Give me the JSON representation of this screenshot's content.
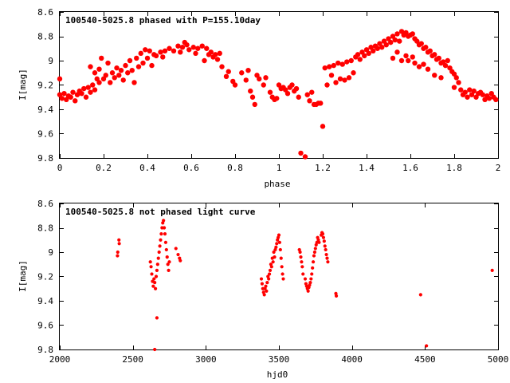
{
  "chart_data": [
    {
      "type": "scatter",
      "title": "100540-5025.8 phased with P=155.10day",
      "xlabel": "phase",
      "ylabel": "I[mag]",
      "xlim": [
        0,
        2
      ],
      "ylim": [
        8.6,
        9.8
      ],
      "y_inverted": true,
      "xticks": [
        "0",
        "0.2",
        "0.4",
        "0.6",
        "0.8",
        "1",
        "1.2",
        "1.4",
        "1.6",
        "1.8",
        "2"
      ],
      "yticks": [
        "8.6",
        "8.8",
        "9",
        "9.2",
        "9.4",
        "9.6",
        "9.8"
      ],
      "color": "#ff0000",
      "marker": "filled-circle-large",
      "points": [
        [
          0.0,
          9.15
        ],
        [
          0.0,
          9.28
        ],
        [
          0.01,
          9.31
        ],
        [
          0.02,
          9.27
        ],
        [
          0.03,
          9.32
        ],
        [
          0.04,
          9.29
        ],
        [
          0.05,
          9.3
        ],
        [
          0.06,
          9.26
        ],
        [
          0.07,
          9.33
        ],
        [
          0.08,
          9.28
        ],
        [
          0.09,
          9.25
        ],
        [
          0.1,
          9.27
        ],
        [
          0.11,
          9.23
        ],
        [
          0.12,
          9.3
        ],
        [
          0.13,
          9.22
        ],
        [
          0.14,
          9.26
        ],
        [
          0.15,
          9.2
        ],
        [
          0.16,
          9.24
        ],
        [
          0.17,
          9.15
        ],
        [
          0.18,
          9.18
        ],
        [
          0.19,
          8.98
        ],
        [
          0.2,
          9.15
        ],
        [
          0.21,
          9.12
        ],
        [
          0.22,
          9.02
        ],
        [
          0.23,
          9.18
        ],
        [
          0.24,
          9.1
        ],
        [
          0.25,
          9.14
        ],
        [
          0.26,
          9.06
        ],
        [
          0.27,
          9.12
        ],
        [
          0.28,
          9.08
        ],
        [
          0.29,
          9.16
        ],
        [
          0.3,
          9.04
        ],
        [
          0.31,
          9.1
        ],
        [
          0.32,
          9.0
        ],
        [
          0.33,
          9.08
        ],
        [
          0.34,
          9.18
        ],
        [
          0.35,
          8.98
        ],
        [
          0.36,
          9.05
        ],
        [
          0.37,
          8.94
        ],
        [
          0.38,
          9.02
        ],
        [
          0.39,
          8.91
        ],
        [
          0.4,
          8.98
        ],
        [
          0.41,
          8.92
        ],
        [
          0.42,
          9.04
        ],
        [
          0.43,
          8.95
        ],
        [
          0.44,
          8.96
        ],
        [
          0.46,
          8.93
        ],
        [
          0.48,
          8.92
        ],
        [
          0.5,
          8.9
        ],
        [
          0.52,
          8.92
        ],
        [
          0.54,
          8.88
        ],
        [
          0.56,
          8.89
        ],
        [
          0.57,
          8.85
        ],
        [
          0.58,
          8.87
        ],
        [
          0.59,
          8.91
        ],
        [
          0.61,
          8.89
        ],
        [
          0.63,
          8.9
        ],
        [
          0.65,
          8.88
        ],
        [
          0.67,
          8.9
        ],
        [
          0.68,
          8.95
        ],
        [
          0.69,
          8.93
        ],
        [
          0.7,
          8.97
        ],
        [
          0.71,
          8.95
        ],
        [
          0.72,
          8.99
        ],
        [
          0.73,
          8.94
        ],
        [
          0.74,
          9.05
        ],
        [
          0.76,
          9.13
        ],
        [
          0.77,
          9.09
        ],
        [
          0.79,
          9.17
        ],
        [
          0.8,
          9.2
        ],
        [
          0.83,
          9.1
        ],
        [
          0.85,
          9.16
        ],
        [
          0.86,
          9.08
        ],
        [
          0.87,
          9.25
        ],
        [
          0.88,
          9.3
        ],
        [
          0.89,
          9.36
        ],
        [
          0.9,
          9.12
        ],
        [
          0.91,
          9.15
        ],
        [
          0.93,
          9.2
        ],
        [
          0.94,
          9.14
        ],
        [
          0.96,
          9.26
        ],
        [
          0.97,
          9.3
        ],
        [
          0.98,
          9.32
        ],
        [
          0.99,
          9.31
        ],
        [
          1.0,
          9.2
        ],
        [
          1.01,
          9.23
        ],
        [
          1.02,
          9.22
        ],
        [
          1.03,
          9.24
        ],
        [
          1.04,
          9.27
        ],
        [
          1.05,
          9.22
        ],
        [
          1.06,
          9.2
        ],
        [
          1.07,
          9.25
        ],
        [
          1.08,
          9.23
        ],
        [
          1.09,
          9.3
        ],
        [
          1.1,
          9.76
        ],
        [
          1.12,
          9.79
        ],
        [
          1.13,
          9.28
        ],
        [
          1.14,
          9.33
        ],
        [
          1.15,
          9.26
        ],
        [
          1.16,
          9.36
        ],
        [
          1.17,
          9.36
        ],
        [
          1.18,
          9.35
        ],
        [
          1.19,
          9.35
        ],
        [
          1.2,
          9.54
        ],
        [
          1.21,
          9.06
        ],
        [
          1.22,
          9.2
        ],
        [
          1.23,
          9.05
        ],
        [
          1.24,
          9.12
        ],
        [
          1.25,
          9.04
        ],
        [
          1.26,
          9.18
        ],
        [
          1.27,
          9.02
        ],
        [
          1.28,
          9.15
        ],
        [
          1.29,
          9.03
        ],
        [
          1.3,
          9.16
        ],
        [
          1.31,
          9.01
        ],
        [
          1.32,
          9.14
        ],
        [
          1.33,
          9.0
        ],
        [
          1.34,
          9.1
        ],
        [
          1.35,
          8.97
        ],
        [
          1.36,
          8.95
        ],
        [
          1.37,
          8.99
        ],
        [
          1.38,
          8.93
        ],
        [
          1.39,
          8.96
        ],
        [
          1.4,
          8.91
        ],
        [
          1.41,
          8.94
        ],
        [
          1.42,
          8.89
        ],
        [
          1.43,
          8.92
        ],
        [
          1.44,
          8.88
        ],
        [
          1.45,
          8.9
        ],
        [
          1.46,
          8.86
        ],
        [
          1.47,
          8.89
        ],
        [
          1.48,
          8.84
        ],
        [
          1.49,
          8.87
        ],
        [
          1.5,
          8.82
        ],
        [
          1.51,
          8.85
        ],
        [
          1.52,
          8.8
        ],
        [
          1.53,
          8.83
        ],
        [
          1.54,
          8.78
        ],
        [
          1.55,
          8.84
        ],
        [
          1.56,
          8.76
        ],
        [
          1.57,
          8.79
        ],
        [
          1.58,
          8.77
        ],
        [
          1.59,
          8.8
        ],
        [
          1.6,
          8.79
        ],
        [
          1.61,
          8.78
        ],
        [
          1.62,
          8.82
        ],
        [
          1.63,
          8.84
        ],
        [
          1.64,
          8.87
        ],
        [
          1.65,
          8.86
        ],
        [
          1.66,
          8.9
        ],
        [
          1.67,
          8.89
        ],
        [
          1.68,
          8.93
        ],
        [
          1.69,
          8.92
        ],
        [
          1.7,
          8.96
        ],
        [
          1.71,
          8.95
        ],
        [
          1.72,
          8.99
        ],
        [
          1.73,
          8.98
        ],
        [
          1.74,
          9.02
        ],
        [
          1.75,
          9.01
        ],
        [
          1.76,
          9.04
        ],
        [
          1.77,
          9.0
        ],
        [
          1.78,
          9.06
        ],
        [
          1.79,
          9.09
        ],
        [
          1.8,
          9.11
        ],
        [
          1.81,
          9.14
        ],
        [
          1.82,
          9.18
        ],
        [
          1.83,
          9.24
        ],
        [
          1.84,
          9.28
        ],
        [
          1.85,
          9.26
        ],
        [
          1.86,
          9.3
        ],
        [
          1.87,
          9.24
        ],
        [
          1.88,
          9.28
        ],
        [
          1.89,
          9.25
        ],
        [
          1.9,
          9.3
        ],
        [
          1.91,
          9.27
        ],
        [
          1.92,
          9.26
        ],
        [
          1.93,
          9.28
        ],
        [
          1.94,
          9.32
        ],
        [
          1.95,
          9.29
        ],
        [
          1.96,
          9.31
        ],
        [
          1.97,
          9.27
        ],
        [
          1.98,
          9.3
        ],
        [
          1.99,
          9.32
        ],
        [
          1.58,
          8.96
        ],
        [
          1.59,
          9.0
        ],
        [
          1.61,
          8.97
        ],
        [
          1.62,
          9.02
        ],
        [
          1.64,
          9.05
        ],
        [
          1.52,
          8.98
        ],
        [
          1.54,
          8.93
        ],
        [
          1.56,
          9.0
        ],
        [
          1.66,
          9.03
        ],
        [
          1.68,
          9.07
        ],
        [
          1.71,
          9.12
        ],
        [
          1.74,
          9.14
        ],
        [
          1.8,
          9.22
        ],
        [
          0.14,
          9.05
        ],
        [
          0.16,
          9.1
        ],
        [
          0.18,
          9.07
        ],
        [
          0.47,
          8.97
        ],
        [
          0.55,
          8.93
        ],
        [
          0.62,
          8.94
        ],
        [
          0.66,
          9.0
        ]
      ]
    },
    {
      "type": "scatter",
      "title": "100540-5025.8 not phased light curve",
      "xlabel": "hjd0",
      "ylabel": "I[mag]",
      "xlim": [
        2000,
        5000
      ],
      "ylim": [
        8.6,
        9.8
      ],
      "y_inverted": true,
      "xticks": [
        "2000",
        "2500",
        "3000",
        "3500",
        "4000",
        "4500",
        "5000"
      ],
      "yticks": [
        "8.6",
        "8.8",
        "9",
        "9.2",
        "9.4",
        "9.6",
        "9.8"
      ],
      "color": "#ff0000",
      "marker": "filled-circle-small",
      "points": [
        [
          2395,
          9.03
        ],
        [
          2397,
          9.0
        ],
        [
          2405,
          8.9
        ],
        [
          2407,
          8.93
        ],
        [
          2620,
          9.08
        ],
        [
          2625,
          9.12
        ],
        [
          2630,
          9.18
        ],
        [
          2635,
          9.24
        ],
        [
          2640,
          9.28
        ],
        [
          2645,
          9.22
        ],
        [
          2650,
          9.25
        ],
        [
          2655,
          9.3
        ],
        [
          2660,
          9.2
        ],
        [
          2665,
          9.15
        ],
        [
          2670,
          9.1
        ],
        [
          2675,
          9.05
        ],
        [
          2680,
          9.0
        ],
        [
          2685,
          8.95
        ],
        [
          2690,
          8.9
        ],
        [
          2695,
          8.85
        ],
        [
          2700,
          8.8
        ],
        [
          2705,
          8.76
        ],
        [
          2710,
          8.74
        ],
        [
          2715,
          8.8
        ],
        [
          2720,
          8.85
        ],
        [
          2725,
          8.92
        ],
        [
          2730,
          8.98
        ],
        [
          2735,
          9.04
        ],
        [
          2740,
          9.1
        ],
        [
          2745,
          9.15
        ],
        [
          2750,
          9.08
        ],
        [
          2795,
          8.97
        ],
        [
          2810,
          9.02
        ],
        [
          2820,
          9.05
        ],
        [
          2825,
          9.07
        ],
        [
          2650,
          9.8
        ],
        [
          2665,
          9.54
        ],
        [
          3380,
          9.22
        ],
        [
          3385,
          9.26
        ],
        [
          3390,
          9.3
        ],
        [
          3395,
          9.33
        ],
        [
          3400,
          9.35
        ],
        [
          3405,
          9.3
        ],
        [
          3410,
          9.28
        ],
        [
          3415,
          9.32
        ],
        [
          3420,
          9.25
        ],
        [
          3425,
          9.2
        ],
        [
          3430,
          9.22
        ],
        [
          3435,
          9.18
        ],
        [
          3440,
          9.15
        ],
        [
          3445,
          9.1
        ],
        [
          3450,
          9.12
        ],
        [
          3455,
          9.05
        ],
        [
          3460,
          9.08
        ],
        [
          3465,
          9.0
        ],
        [
          3470,
          9.04
        ],
        [
          3475,
          8.98
        ],
        [
          3480,
          8.96
        ],
        [
          3485,
          8.93
        ],
        [
          3490,
          8.9
        ],
        [
          3495,
          8.88
        ],
        [
          3500,
          8.86
        ],
        [
          3505,
          8.92
        ],
        [
          3510,
          8.98
        ],
        [
          3515,
          9.05
        ],
        [
          3520,
          9.12
        ],
        [
          3525,
          9.18
        ],
        [
          3530,
          9.22
        ],
        [
          3640,
          8.98
        ],
        [
          3645,
          9.0
        ],
        [
          3650,
          9.04
        ],
        [
          3655,
          9.08
        ],
        [
          3660,
          9.12
        ],
        [
          3665,
          9.18
        ],
        [
          3680,
          9.22
        ],
        [
          3685,
          9.26
        ],
        [
          3690,
          9.28
        ],
        [
          3695,
          9.3
        ],
        [
          3700,
          9.32
        ],
        [
          3705,
          9.29
        ],
        [
          3710,
          9.27
        ],
        [
          3715,
          9.25
        ],
        [
          3720,
          9.22
        ],
        [
          3725,
          9.18
        ],
        [
          3730,
          9.13
        ],
        [
          3735,
          9.08
        ],
        [
          3740,
          9.03
        ],
        [
          3745,
          9.0
        ],
        [
          3750,
          8.97
        ],
        [
          3755,
          8.94
        ],
        [
          3760,
          8.92
        ],
        [
          3765,
          8.88
        ],
        [
          3770,
          8.9
        ],
        [
          3775,
          8.92
        ],
        [
          3790,
          8.86
        ],
        [
          3795,
          8.84
        ],
        [
          3800,
          8.85
        ],
        [
          3805,
          8.88
        ],
        [
          3810,
          8.91
        ],
        [
          3815,
          8.95
        ],
        [
          3820,
          8.98
        ],
        [
          3825,
          9.02
        ],
        [
          3830,
          9.05
        ],
        [
          3835,
          9.08
        ],
        [
          3890,
          9.34
        ],
        [
          3893,
          9.36
        ],
        [
          4470,
          9.35
        ],
        [
          4510,
          9.77
        ],
        [
          4960,
          9.15
        ]
      ]
    }
  ]
}
